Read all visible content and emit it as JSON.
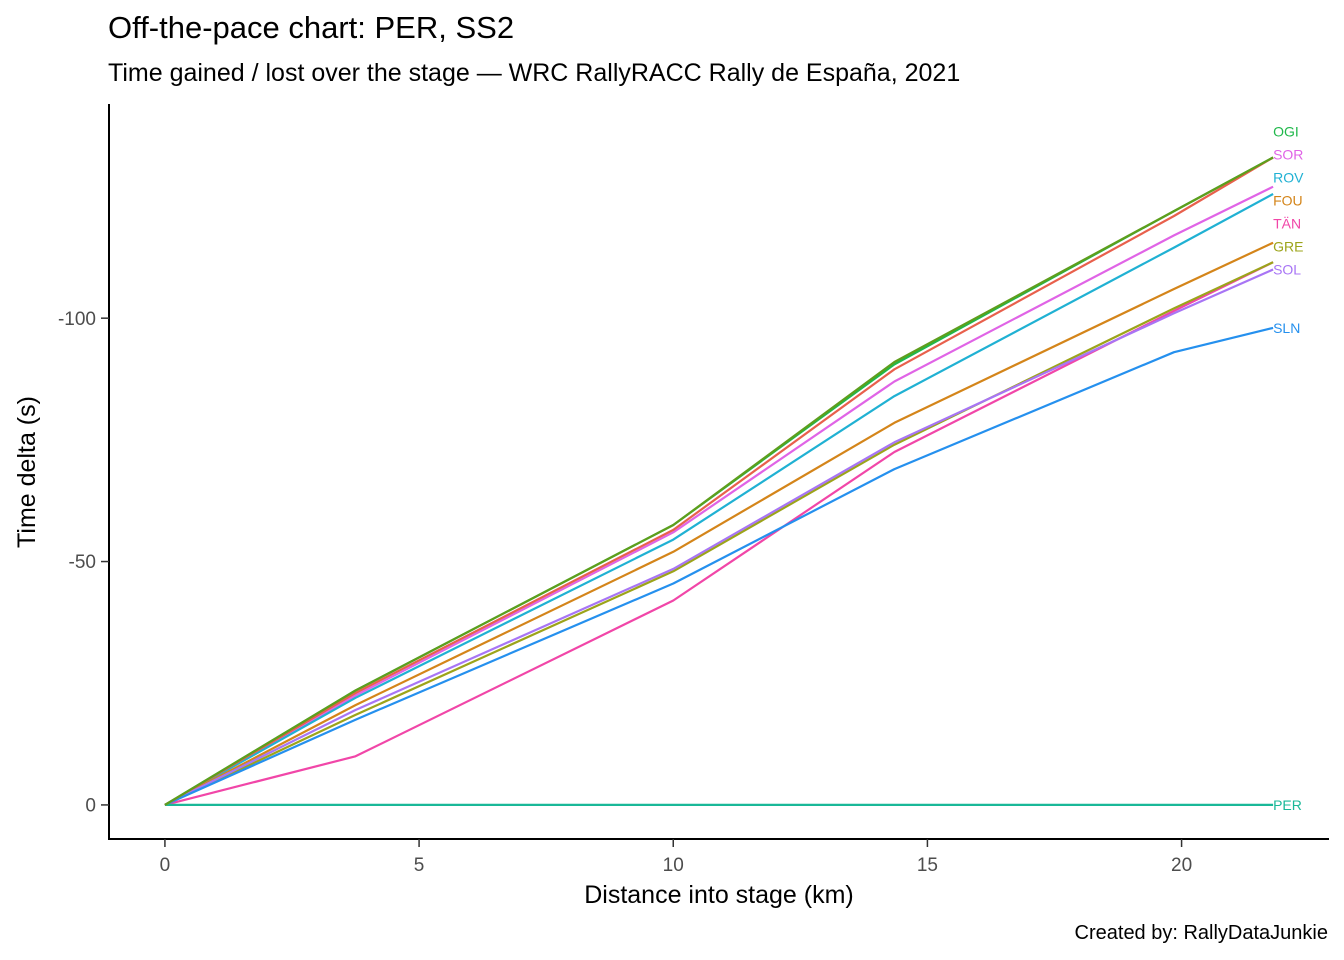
{
  "title": "Off-the-pace chart: PER, SS2",
  "subtitle": "Time gained / lost over the stage — WRC RallyRACC Rally de España, 2021",
  "caption": "Created by: RallyDataJunkie",
  "chart_data": {
    "type": "line",
    "xlabel": "Distance into stage (km)",
    "ylabel": "Time delta (s)",
    "xlim": [
      -1.1,
      22.9
    ],
    "ylim": [
      7,
      -144
    ],
    "y_reversed": true,
    "x_ticks": [
      0,
      5,
      10,
      15,
      20
    ],
    "y_ticks": [
      0,
      -50,
      -100
    ],
    "grid": false,
    "legend": "none (end-of-line labels)",
    "x": [
      0,
      3.75,
      10,
      14.35,
      19.85,
      21.8
    ],
    "series": [
      {
        "name": "OGI",
        "color": "#1fb84a",
        "values": [
          0,
          -23.5,
          -57.5,
          -90.5,
          -122,
          -133
        ]
      },
      {
        "name": "SOR",
        "color": "#e064e6",
        "values": [
          0,
          -22.5,
          -56,
          -87,
          -117,
          -127
        ]
      },
      {
        "name": "ROV",
        "color": "#20b1d3",
        "values": [
          0,
          -22,
          -54.5,
          -84,
          -114.5,
          -125.5
        ]
      },
      {
        "name": "FOU",
        "color": "#d4851a",
        "values": [
          0,
          -20.5,
          -52,
          -78.5,
          -106,
          -115.5
        ]
      },
      {
        "name": "TÄN",
        "color": "#f146a8",
        "values": [
          0,
          -10,
          -42,
          -72.5,
          -101.5,
          -111.5
        ]
      },
      {
        "name": "GRE",
        "color": "#9ca41a",
        "values": [
          0,
          -18.5,
          -48,
          -74,
          -102,
          -111.5
        ]
      },
      {
        "name": "SOL",
        "color": "#a875f5",
        "values": [
          0,
          -19.5,
          -48.5,
          -74.5,
          -101,
          -110
        ]
      },
      {
        "name": "SLN",
        "color": "#2590ee",
        "values": [
          0,
          -17.5,
          -45.5,
          -69,
          -93,
          -98
        ]
      },
      {
        "name": "PER",
        "color": "#19b898",
        "values": [
          0,
          0,
          0,
          0,
          0,
          0
        ]
      },
      {
        "name": "",
        "color": "#e8604c",
        "values": [
          0,
          -23,
          -56.5,
          -89.5,
          -121,
          -133
        ]
      },
      {
        "name": "",
        "color": "#5e9e1c",
        "values": [
          0,
          -23.5,
          -57.5,
          -91,
          -122,
          -133
        ]
      }
    ]
  }
}
